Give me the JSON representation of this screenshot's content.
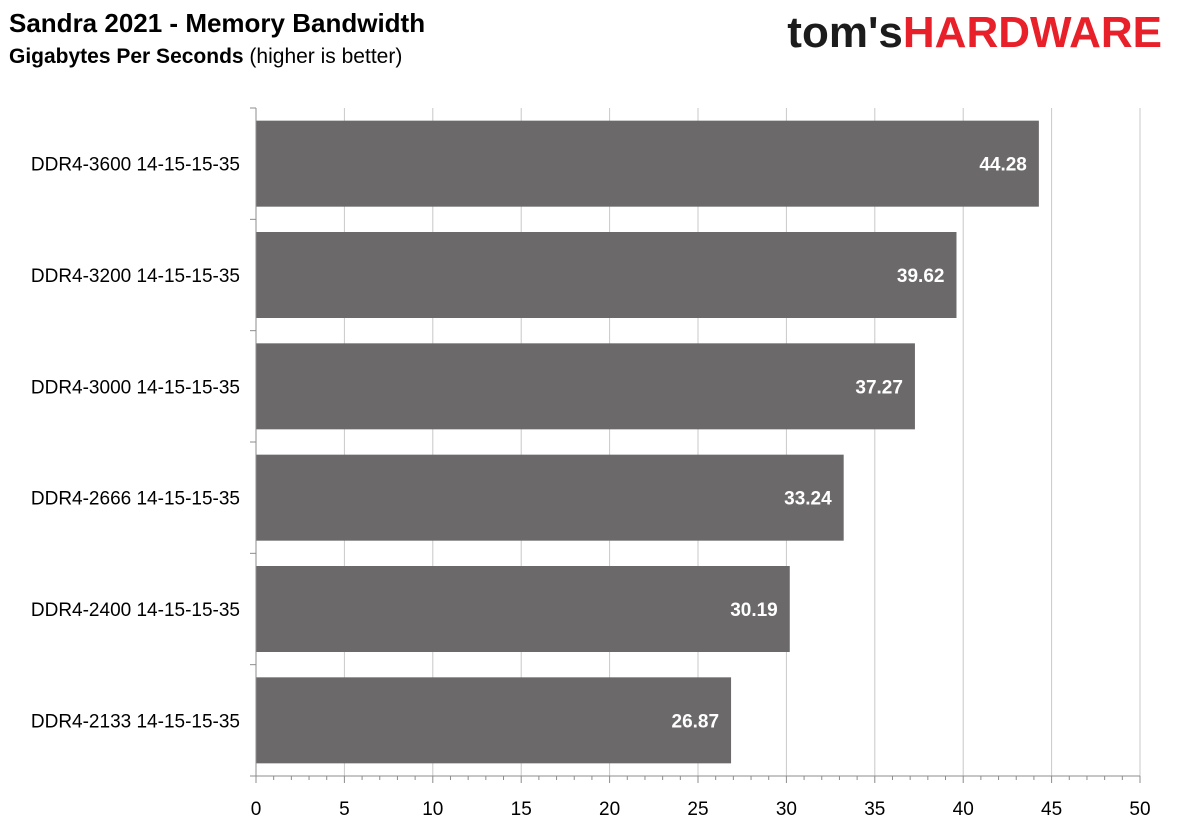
{
  "header": {
    "title": "Sandra 2021 - Memory Bandwidth",
    "subtitle_bold": "Gigabytes Per Seconds",
    "subtitle_rest": " (higher is better)"
  },
  "logo": {
    "part1": "tom's",
    "part2": "HARDWARE"
  },
  "colors": {
    "bar": "#6b6969",
    "grid": "#c8c8c8",
    "axis": "#8c8c8c",
    "logo_red": "#e8202a",
    "value_label": "#ffffff"
  },
  "chart_data": {
    "type": "bar",
    "orientation": "horizontal",
    "title": "Sandra 2021 - Memory Bandwidth",
    "subtitle": "Gigabytes Per Seconds (higher is better)",
    "categories": [
      "DDR4-3600 14-15-15-35",
      "DDR4-3200 14-15-15-35",
      "DDR4-3000 14-15-15-35",
      "DDR4-2666 14-15-15-35",
      "DDR4-2400 14-15-15-35",
      "DDR4-2133 14-15-15-35"
    ],
    "values": [
      44.28,
      39.62,
      37.27,
      33.24,
      30.19,
      26.87
    ],
    "value_labels": [
      "44.28",
      "39.62",
      "37.27",
      "33.24",
      "30.19",
      "26.87"
    ],
    "xlim": [
      0,
      50
    ],
    "xticks": [
      0,
      5,
      10,
      15,
      20,
      25,
      30,
      35,
      40,
      45,
      50
    ],
    "grid": true,
    "legend": "none"
  }
}
